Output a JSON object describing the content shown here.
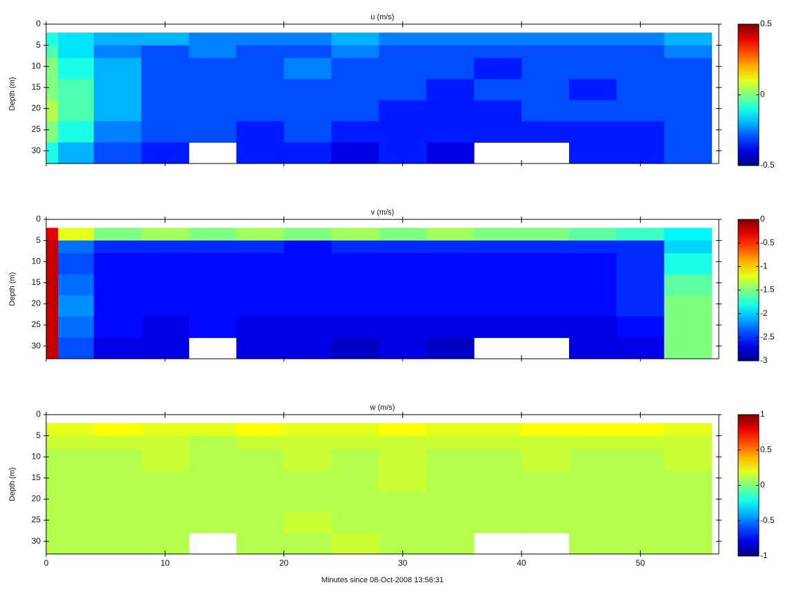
{
  "chart_data": [
    {
      "type": "heatmap",
      "title": "u (m/s)",
      "ylabel": "Depth (m)",
      "xlim": [
        0,
        56.6
      ],
      "ylim": [
        0,
        33
      ],
      "yticks": [
        0,
        5,
        10,
        15,
        20,
        25,
        30
      ],
      "clim": [
        -0.5,
        0.5
      ],
      "cticks": [
        0.5,
        0,
        -0.5
      ],
      "xbins": [
        0,
        1,
        4,
        8,
        12,
        16,
        20,
        24,
        28,
        32,
        36,
        40,
        44,
        48,
        52,
        56
      ],
      "ybins": [
        2,
        5,
        8,
        13,
        18,
        23,
        28,
        33
      ],
      "values": [
        [
          -0.1,
          -0.15,
          -0.2,
          -0.2,
          -0.25,
          -0.25,
          -0.25,
          -0.2,
          -0.25,
          -0.25,
          -0.25,
          -0.25,
          -0.25,
          -0.25,
          -0.2
        ],
        [
          -0.05,
          -0.15,
          -0.25,
          -0.3,
          -0.25,
          -0.3,
          -0.3,
          -0.25,
          -0.3,
          -0.3,
          -0.3,
          -0.3,
          -0.3,
          -0.3,
          -0.25
        ],
        [
          0,
          -0.1,
          -0.2,
          -0.3,
          -0.3,
          -0.3,
          -0.25,
          -0.3,
          -0.3,
          -0.3,
          -0.35,
          -0.3,
          -0.3,
          -0.3,
          -0.3
        ],
        [
          0,
          -0.05,
          -0.2,
          -0.3,
          -0.3,
          -0.3,
          -0.3,
          -0.3,
          -0.3,
          -0.35,
          -0.3,
          -0.3,
          -0.35,
          -0.3,
          -0.3
        ],
        [
          0.05,
          -0.05,
          -0.2,
          -0.3,
          -0.3,
          -0.3,
          -0.3,
          -0.3,
          -0.35,
          -0.35,
          -0.35,
          -0.3,
          -0.3,
          -0.3,
          -0.3
        ],
        [
          0,
          -0.1,
          -0.25,
          -0.3,
          -0.3,
          -0.35,
          -0.3,
          -0.35,
          -0.35,
          -0.35,
          -0.35,
          -0.35,
          -0.35,
          -0.35,
          -0.3
        ],
        [
          -0.1,
          -0.2,
          -0.3,
          -0.35,
          null,
          -0.35,
          -0.35,
          -0.4,
          -0.35,
          -0.4,
          null,
          null,
          -0.35,
          -0.35,
          -0.3
        ]
      ]
    },
    {
      "type": "heatmap",
      "title": "v (m/s)",
      "ylabel": "Depth (m)",
      "xlim": [
        0,
        56.6
      ],
      "ylim": [
        0,
        33
      ],
      "yticks": [
        0,
        5,
        10,
        15,
        20,
        25,
        30
      ],
      "clim": [
        -3,
        0
      ],
      "cticks": [
        0,
        -0.5,
        -1,
        -1.5,
        -2,
        -2.5,
        -3
      ],
      "xbins": [
        0,
        1,
        4,
        8,
        12,
        16,
        20,
        24,
        28,
        32,
        36,
        40,
        44,
        48,
        52,
        56
      ],
      "ybins": [
        2,
        5,
        8,
        13,
        18,
        23,
        28,
        33
      ],
      "values": [
        [
          -0.3,
          -1.2,
          -1.5,
          -1.4,
          -1.5,
          -1.4,
          -1.5,
          -1.4,
          -1.5,
          -1.4,
          -1.5,
          -1.5,
          -1.6,
          -1.7,
          -1.9
        ],
        [
          -0.2,
          -2.3,
          -2.5,
          -2.5,
          -2.5,
          -2.5,
          -2.6,
          -2.5,
          -2.5,
          -2.5,
          -2.5,
          -2.5,
          -2.5,
          -2.5,
          -2.0
        ],
        [
          -0.2,
          -2.4,
          -2.6,
          -2.6,
          -2.6,
          -2.6,
          -2.6,
          -2.6,
          -2.6,
          -2.6,
          -2.6,
          -2.6,
          -2.6,
          -2.5,
          -1.8
        ],
        [
          -0.2,
          -2.3,
          -2.6,
          -2.6,
          -2.6,
          -2.6,
          -2.6,
          -2.6,
          -2.6,
          -2.6,
          -2.6,
          -2.6,
          -2.6,
          -2.5,
          -1.6
        ],
        [
          -0.2,
          -2.2,
          -2.6,
          -2.6,
          -2.6,
          -2.6,
          -2.6,
          -2.6,
          -2.6,
          -2.6,
          -2.6,
          -2.6,
          -2.6,
          -2.5,
          -1.5
        ],
        [
          -0.2,
          -2.3,
          -2.6,
          -2.7,
          -2.6,
          -2.7,
          -2.7,
          -2.7,
          -2.7,
          -2.7,
          -2.7,
          -2.7,
          -2.7,
          -2.6,
          -1.5
        ],
        [
          -0.2,
          -2.4,
          -2.7,
          -2.7,
          null,
          -2.7,
          -2.7,
          -2.8,
          -2.7,
          -2.8,
          null,
          null,
          -2.7,
          -2.7,
          -1.5
        ]
      ]
    },
    {
      "type": "heatmap",
      "title": "w (m/s)",
      "ylabel": "Depth (m)",
      "xlabel": "Minutes since 08-Oct-2008 13:56:31",
      "xlim": [
        0,
        56.6
      ],
      "xticks": [
        0,
        10,
        20,
        30,
        40,
        50
      ],
      "ylim": [
        0,
        33
      ],
      "yticks": [
        0,
        5,
        10,
        15,
        20,
        25,
        30
      ],
      "clim": [
        -1,
        1
      ],
      "cticks": [
        1,
        0.5,
        0,
        -0.5,
        -1
      ],
      "xbins": [
        0,
        1,
        4,
        8,
        12,
        16,
        20,
        24,
        28,
        32,
        36,
        40,
        44,
        48,
        52,
        56
      ],
      "ybins": [
        2,
        5,
        8,
        13,
        18,
        23,
        28,
        33
      ],
      "values": [
        [
          0.2,
          0.2,
          0.25,
          0.2,
          0.2,
          0.25,
          0.2,
          0.2,
          0.25,
          0.2,
          0.2,
          0.25,
          0.25,
          0.25,
          0.2
        ],
        [
          0.15,
          0.15,
          0.15,
          0.15,
          0.1,
          0.15,
          0.15,
          0.15,
          0.15,
          0.15,
          0.15,
          0.15,
          0.15,
          0.15,
          0.15
        ],
        [
          0.1,
          0.1,
          0.1,
          0.15,
          0.1,
          0.1,
          0.15,
          0.1,
          0.15,
          0.1,
          0.1,
          0.15,
          0.1,
          0.1,
          0.15
        ],
        [
          0.1,
          0.1,
          0.1,
          0.1,
          0.1,
          0.1,
          0.1,
          0.1,
          0.15,
          0.1,
          0.1,
          0.1,
          0.1,
          0.1,
          0.1
        ],
        [
          0.1,
          0.1,
          0.1,
          0.1,
          0.1,
          0.1,
          0.1,
          0.1,
          0.1,
          0.1,
          0.1,
          0.1,
          0.1,
          0.1,
          0.1
        ],
        [
          0.1,
          0.1,
          0.1,
          0.1,
          0.1,
          0.1,
          0.15,
          0.1,
          0.1,
          0.1,
          0.1,
          0.1,
          0.1,
          0.1,
          0.1
        ],
        [
          0.1,
          0.1,
          0.1,
          0.1,
          null,
          0.1,
          0.1,
          0.15,
          0.1,
          0.1,
          null,
          null,
          0.1,
          0.1,
          0.1
        ]
      ]
    }
  ]
}
